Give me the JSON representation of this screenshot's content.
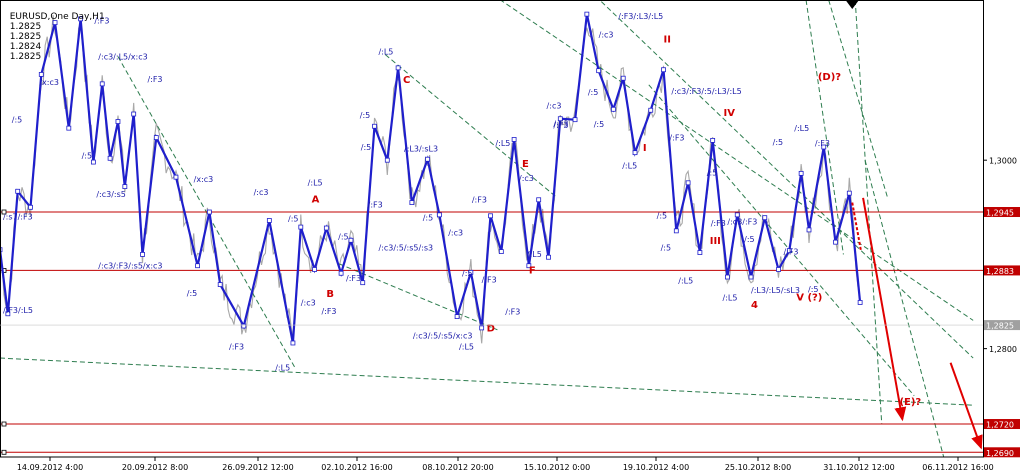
{
  "header": {
    "symbol": "EURUSD,One Day,H1",
    "ohlc": [
      "1.2825",
      "1.2825",
      "1.2824",
      "1.2825"
    ]
  },
  "chart_data": {
    "type": "line",
    "price_axis": {
      "ylim": [
        1.2685,
        1.317
      ],
      "ticks": [
        "1,3000",
        "1,2800"
      ],
      "tick_values": [
        1.3,
        1.28
      ]
    },
    "time_axis": {
      "ticks": [
        "14.09.2012 4:00",
        "20.09.2012 8:00",
        "26.09.2012 12:00",
        "02.10.2012 16:00",
        "08.10.2012 20:00",
        "15.10.2012 0:00",
        "19.10.2012 4:00",
        "25.10.2012 8:00",
        "31.10.2012 12:00",
        "06.11.2012 16:00"
      ]
    },
    "horizontal_levels": [
      {
        "value": 1.2945,
        "label": "1,2945",
        "color": "#c00000"
      },
      {
        "value": 1.2883,
        "label": "1,2883",
        "color": "#c00000"
      },
      {
        "value": 1.272,
        "label": "1,2720",
        "color": "#c00000"
      },
      {
        "value": 1.269,
        "label": "1,2690",
        "color": "#c00000"
      }
    ],
    "current_price": {
      "value": 1.2825,
      "label": "1,2825"
    },
    "wave_line": {
      "color": "#1f1fcc",
      "points": [
        [
          0,
          1.2905
        ],
        [
          0.008,
          1.2837
        ],
        [
          0.018,
          1.2967
        ],
        [
          0.031,
          1.295
        ],
        [
          0.042,
          1.3091
        ],
        [
          0.056,
          1.3146
        ],
        [
          0.07,
          1.3034
        ],
        [
          0.082,
          1.315
        ],
        [
          0.095,
          1.2998
        ],
        [
          0.104,
          1.3081
        ],
        [
          0.112,
          1.3002
        ],
        [
          0.12,
          1.3041
        ],
        [
          0.127,
          1.2972
        ],
        [
          0.136,
          1.3049
        ],
        [
          0.145,
          1.29
        ],
        [
          0.159,
          1.3024
        ],
        [
          0.179,
          1.2982
        ],
        [
          0.201,
          1.2888
        ],
        [
          0.213,
          1.2945
        ],
        [
          0.224,
          1.2868
        ],
        [
          0.248,
          1.2824
        ],
        [
          0.274,
          1.2936
        ],
        [
          0.298,
          1.2806
        ],
        [
          0.306,
          1.2929
        ],
        [
          0.32,
          1.2884
        ],
        [
          0.332,
          1.2928
        ],
        [
          0.347,
          1.288
        ],
        [
          0.357,
          1.2915
        ],
        [
          0.369,
          1.287
        ],
        [
          0.381,
          1.3036
        ],
        [
          0.394,
          1.3
        ],
        [
          0.405,
          1.3098
        ],
        [
          0.419,
          1.2955
        ],
        [
          0.435,
          1.3001
        ],
        [
          0.447,
          1.2942
        ],
        [
          0.465,
          1.2834
        ],
        [
          0.479,
          1.2881
        ],
        [
          0.49,
          1.2822
        ],
        [
          0.499,
          1.2941
        ],
        [
          0.51,
          1.2903
        ],
        [
          0.523,
          1.3022
        ],
        [
          0.538,
          1.2888
        ],
        [
          0.548,
          1.2958
        ],
        [
          0.558,
          1.2897
        ],
        [
          0.57,
          1.3044
        ],
        [
          0.585,
          1.3043
        ],
        [
          0.597,
          1.3155
        ],
        [
          0.609,
          1.3095
        ],
        [
          0.624,
          1.3054
        ],
        [
          0.634,
          1.3087
        ],
        [
          0.646,
          1.3008
        ],
        [
          0.662,
          1.3053
        ],
        [
          0.675,
          1.3096
        ],
        [
          0.688,
          1.2925
        ],
        [
          0.7,
          1.2976
        ],
        [
          0.712,
          1.2902
        ],
        [
          0.725,
          1.3021
        ],
        [
          0.74,
          1.2876
        ],
        [
          0.75,
          1.2942
        ],
        [
          0.764,
          1.2876
        ],
        [
          0.778,
          1.2939
        ],
        [
          0.792,
          1.2884
        ],
        [
          0.803,
          1.2904
        ],
        [
          0.815,
          1.2986
        ],
        [
          0.823,
          1.2926
        ],
        [
          0.838,
          1.3014
        ],
        [
          0.85,
          1.2913
        ],
        [
          0.864,
          1.2965
        ],
        [
          0.875,
          1.2849
        ]
      ]
    },
    "forecast_arrows": [
      {
        "from": [
          0.878,
          1.296
        ],
        "to": [
          0.918,
          1.2725
        ]
      },
      {
        "from": [
          0.967,
          1.2785
        ],
        "to": [
          0.998,
          1.2695
        ]
      }
    ],
    "annotations": {
      "wave_labels": [
        {
          "text": "A",
          "x": 0.317,
          "v": 1.2955,
          "color": "#d00000"
        },
        {
          "text": "B",
          "x": 0.332,
          "v": 1.2855,
          "color": "#d00000"
        },
        {
          "text": "C",
          "x": 0.41,
          "v": 1.3082,
          "color": "#d00000"
        },
        {
          "text": "D",
          "x": 0.495,
          "v": 1.2818,
          "color": "#d00000"
        },
        {
          "text": "E",
          "x": 0.531,
          "v": 1.2993,
          "color": "#d00000"
        },
        {
          "text": "F",
          "x": 0.538,
          "v": 1.288,
          "color": "#d00000"
        },
        {
          "text": "I",
          "x": 0.654,
          "v": 1.301,
          "color": "#d00000"
        },
        {
          "text": "II",
          "x": 0.675,
          "v": 1.3125,
          "color": "#d00000"
        },
        {
          "text": "III",
          "x": 0.722,
          "v": 1.2911,
          "color": "#d00000"
        },
        {
          "text": "IV",
          "x": 0.736,
          "v": 1.3047,
          "color": "#d00000"
        },
        {
          "text": "4",
          "x": 0.764,
          "v": 1.2843,
          "color": "#d00000"
        },
        {
          "text": "V (?)",
          "x": 0.81,
          "v": 1.2851,
          "color": "#d00000"
        },
        {
          "text": "(D)?",
          "x": 0.832,
          "v": 1.3085,
          "color": "#d00000"
        },
        {
          "text": "(E)?",
          "x": 0.915,
          "v": 1.274,
          "color": "#d00000"
        }
      ],
      "fractal_labels": [
        {
          "text": "/:F3",
          "x": 0.096,
          "v": 1.3145
        },
        {
          "text": "/:c3/:L5/x:c3",
          "x": 0.1,
          "v": 1.3107
        },
        {
          "text": "/:F3",
          "x": 0.15,
          "v": 1.3083
        },
        {
          "text": "/x:c3",
          "x": 0.04,
          "v": 1.308
        },
        {
          "text": "/:5",
          "x": 0.012,
          "v": 1.304
        },
        {
          "text": "/:5",
          "x": 0.083,
          "v": 1.3002
        },
        {
          "text": "/:c3/:s5",
          "x": 0.098,
          "v": 1.2961
        },
        {
          "text": "/x:c3",
          "x": 0.197,
          "v": 1.2977
        },
        {
          "text": "/:s7/:F3",
          "x": 0.003,
          "v": 1.2937
        },
        {
          "text": "/:c3/:F3/:s5/x:c3",
          "x": 0.1,
          "v": 1.2885
        },
        {
          "text": "/:5",
          "x": 0.19,
          "v": 1.2856
        },
        {
          "text": "/:F3/:L5",
          "x": 0.003,
          "v": 1.2838
        },
        {
          "text": "/:F3",
          "x": 0.233,
          "v": 1.2799
        },
        {
          "text": "/:L5",
          "x": 0.28,
          "v": 1.2777
        },
        {
          "text": "/:c3",
          "x": 0.258,
          "v": 1.2963
        },
        {
          "text": "/:5",
          "x": 0.293,
          "v": 1.2935
        },
        {
          "text": "/:L5",
          "x": 0.313,
          "v": 1.2973
        },
        {
          "text": "/:c3",
          "x": 0.306,
          "v": 1.2846
        },
        {
          "text": "/:F3",
          "x": 0.327,
          "v": 1.2837
        },
        {
          "text": "/:F3",
          "x": 0.352,
          "v": 1.2872
        },
        {
          "text": "/:5",
          "x": 0.344,
          "v": 1.2916
        },
        {
          "text": "/:L5",
          "x": 0.385,
          "v": 1.3112
        },
        {
          "text": "/:5",
          "x": 0.366,
          "v": 1.3045
        },
        {
          "text": "/:5",
          "x": 0.367,
          "v": 1.3011
        },
        {
          "text": "/:F3",
          "x": 0.374,
          "v": 1.295
        },
        {
          "text": "/:L3/:sL3",
          "x": 0.411,
          "v": 1.3009
        },
        {
          "text": "/:c3/:5/:s5/:s3",
          "x": 0.385,
          "v": 1.2904
        },
        {
          "text": "/:5",
          "x": 0.43,
          "v": 1.2936
        },
        {
          "text": "/:c3",
          "x": 0.456,
          "v": 1.292
        },
        {
          "text": "/:c3/:5/:s5/x:c3",
          "x": 0.42,
          "v": 1.2811
        },
        {
          "text": "/:L5",
          "x": 0.467,
          "v": 1.2799
        },
        {
          "text": "/:F3",
          "x": 0.48,
          "v": 1.2955
        },
        {
          "text": "/:5",
          "x": 0.47,
          "v": 1.2877
        },
        {
          "text": "/:F3",
          "x": 0.49,
          "v": 1.287
        },
        {
          "text": "/:F3",
          "x": 0.514,
          "v": 1.2836
        },
        {
          "text": "/:L5",
          "x": 0.504,
          "v": 1.3015
        },
        {
          "text": "/:c3",
          "x": 0.528,
          "v": 1.2978
        },
        {
          "text": "/:L5",
          "x": 0.536,
          "v": 1.2897
        },
        {
          "text": "/:c3",
          "x": 0.556,
          "v": 1.3055
        },
        {
          "text": "/:F3",
          "x": 0.563,
          "v": 1.3034
        },
        {
          "text": "/:F3",
          "x": 0.563,
          "v": 1.3036
        },
        {
          "text": "/:c3",
          "x": 0.609,
          "v": 1.313
        },
        {
          "text": "/:F3/:L3/:L5",
          "x": 0.629,
          "v": 1.315
        },
        {
          "text": "/:5",
          "x": 0.598,
          "v": 1.3069
        },
        {
          "text": "/:5",
          "x": 0.604,
          "v": 1.3035
        },
        {
          "text": "/:L5",
          "x": 0.633,
          "v": 1.2991
        },
        {
          "text": "/:c3/:F3/:5/:L3/:L5",
          "x": 0.683,
          "v": 1.307
        },
        {
          "text": "/:F3",
          "x": 0.681,
          "v": 1.3021
        },
        {
          "text": "/:5",
          "x": 0.668,
          "v": 1.2938
        },
        {
          "text": "/:5",
          "x": 0.672,
          "v": 1.2904
        },
        {
          "text": "/:L5",
          "x": 0.69,
          "v": 1.2869
        },
        {
          "text": "/:5",
          "x": 0.719,
          "v": 1.2984
        },
        {
          "text": "/:F3",
          "x": 0.723,
          "v": 1.293
        },
        {
          "text": "/:c3/:F3",
          "x": 0.74,
          "v": 1.2932
        },
        {
          "text": "/:5",
          "x": 0.757,
          "v": 1.2913
        },
        {
          "text": "/:L5",
          "x": 0.735,
          "v": 1.2851
        },
        {
          "text": "/:L3/:L5/:sL3",
          "x": 0.764,
          "v": 1.2859
        },
        {
          "text": "/:5",
          "x": 0.786,
          "v": 1.3016
        },
        {
          "text": "/:L5",
          "x": 0.808,
          "v": 1.3031
        },
        {
          "text": "/:F3",
          "x": 0.829,
          "v": 1.3015
        },
        {
          "text": "/:F3",
          "x": 0.797,
          "v": 1.29
        },
        {
          "text": "/:5",
          "x": 0.822,
          "v": 1.286
        }
      ],
      "peak_arrow": {
        "x": 0.867,
        "v": 1.3163
      }
    }
  }
}
